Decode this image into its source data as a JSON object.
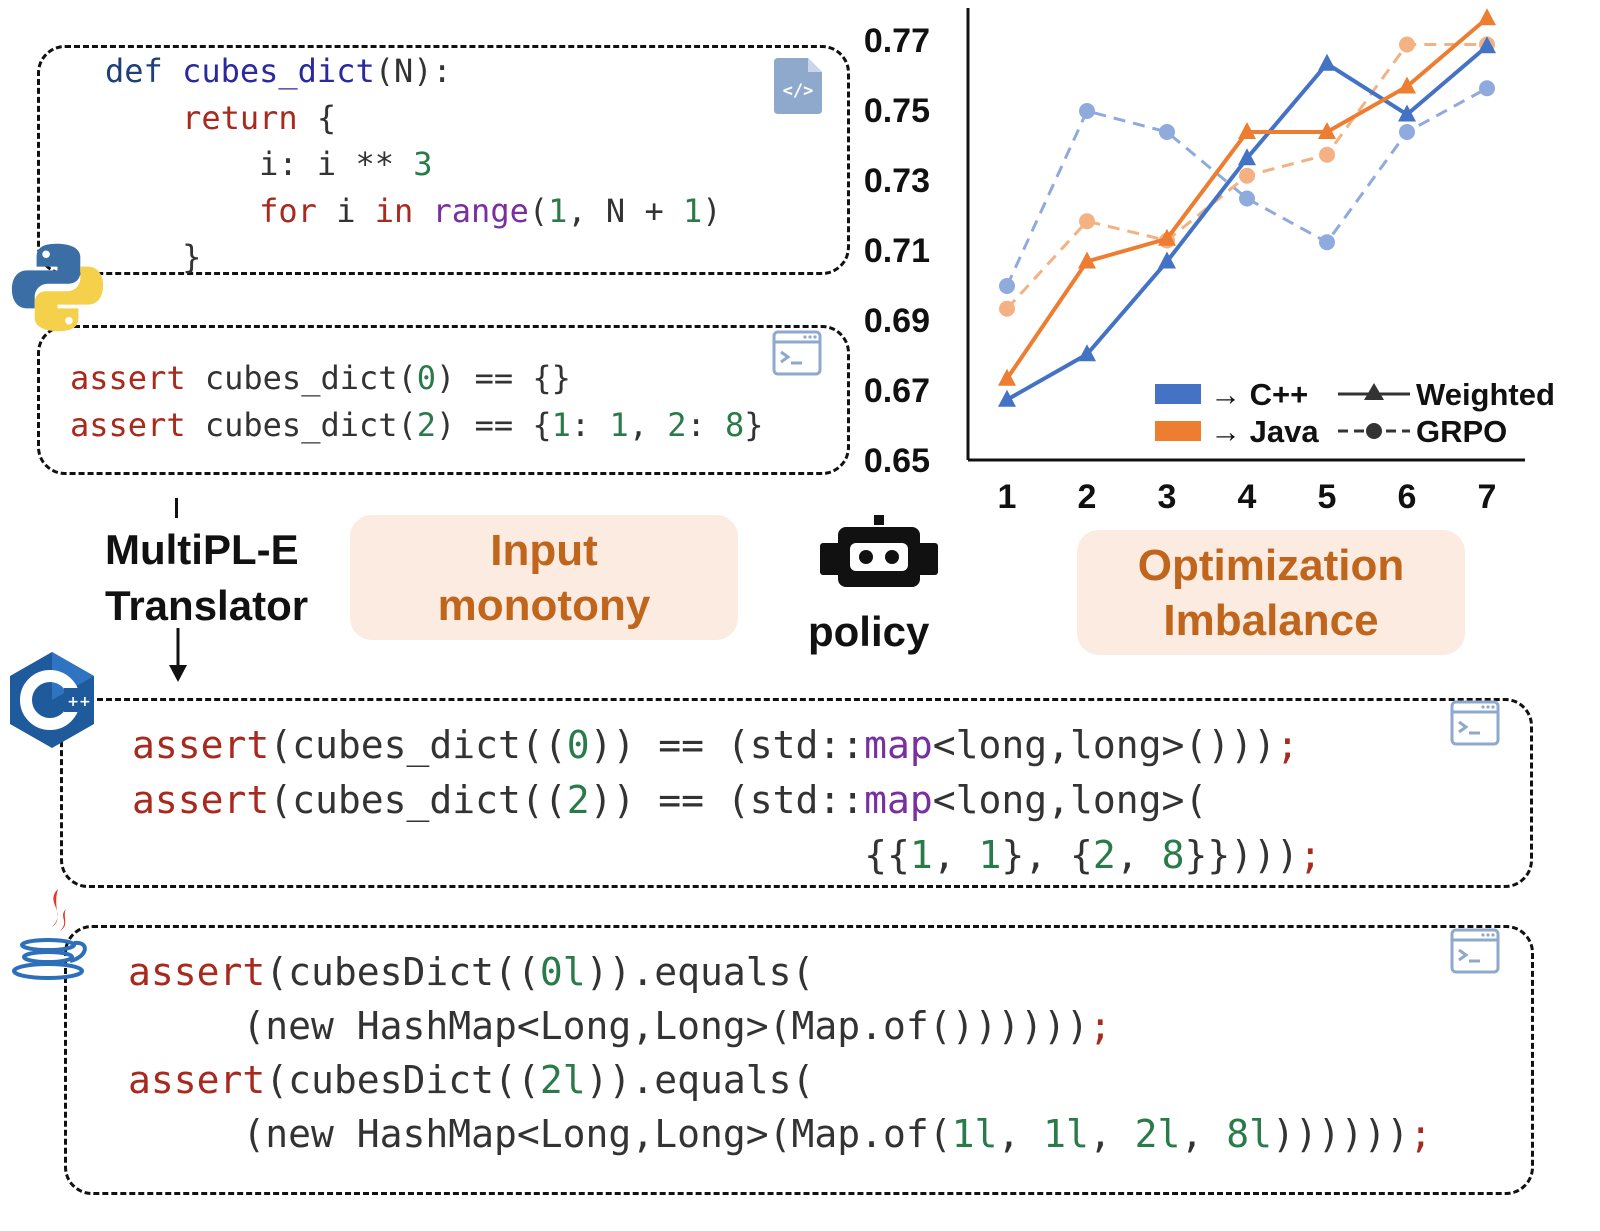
{
  "python": {
    "lines": [
      [
        [
          "def ",
          "kw"
        ],
        [
          "cubes_dict",
          "fn"
        ],
        [
          "(N):",
          ""
        ]
      ],
      [
        [
          "    return ",
          "red"
        ],
        [
          "{",
          ""
        ]
      ],
      [
        [
          "        i: i ** ",
          ""
        ],
        [
          "3",
          "num"
        ]
      ],
      [
        [
          "        for ",
          "red"
        ],
        [
          "i ",
          ""
        ],
        [
          "in ",
          "red"
        ],
        [
          "range",
          "pur"
        ],
        [
          "(",
          ""
        ],
        [
          "1",
          "num"
        ],
        [
          ", N + ",
          ""
        ],
        [
          "1",
          "num"
        ],
        [
          ")",
          ""
        ]
      ],
      [
        [
          "    }",
          ""
        ]
      ]
    ]
  },
  "python_tests": {
    "lines": [
      [
        [
          "assert ",
          "red"
        ],
        [
          "cubes_dict(",
          ""
        ],
        [
          "0",
          "num"
        ],
        [
          ") == {}",
          ""
        ]
      ],
      [
        [
          "assert ",
          "red"
        ],
        [
          "cubes_dict(",
          ""
        ],
        [
          "2",
          "num"
        ],
        [
          ") == {",
          ""
        ],
        [
          "1",
          "num"
        ],
        [
          ": ",
          ""
        ],
        [
          "1",
          "num"
        ],
        [
          ", ",
          ""
        ],
        [
          "2",
          "num"
        ],
        [
          ": ",
          ""
        ],
        [
          "8",
          "num"
        ],
        [
          "}",
          ""
        ]
      ]
    ]
  },
  "translator": {
    "line1": "MultiPL-E",
    "line2": "Translator"
  },
  "input_pill": {
    "line1": "Input",
    "line2": "monotony"
  },
  "policy_label": "policy",
  "optim_pill": {
    "line1": "Optimization",
    "line2": "Imbalance"
  },
  "cpp_tests": {
    "lines": [
      [
        [
          "assert",
          "red"
        ],
        [
          "(cubes_dict((",
          ""
        ],
        [
          "0",
          "num"
        ],
        [
          ")) == (std::",
          ""
        ],
        [
          "map",
          "pur"
        ],
        [
          "<long,long>()))",
          ""
        ],
        [
          ";",
          "red"
        ]
      ],
      [
        [
          "assert",
          "red"
        ],
        [
          "(cubes_dict((",
          ""
        ],
        [
          "2",
          "num"
        ],
        [
          ")) == (std::",
          ""
        ],
        [
          "map",
          "pur"
        ],
        [
          "<long,long>(",
          ""
        ]
      ],
      [
        [
          "                                ",
          ""
        ],
        [
          "{{",
          ""
        ],
        [
          "1",
          "num"
        ],
        [
          ", ",
          ""
        ],
        [
          "1",
          "num"
        ],
        [
          "}, {",
          ""
        ],
        [
          "2",
          "num"
        ],
        [
          ", ",
          ""
        ],
        [
          "8",
          "num"
        ],
        [
          "}})))",
          ""
        ],
        [
          ";",
          "red"
        ]
      ]
    ]
  },
  "java_tests": {
    "lines": [
      [
        [
          "assert",
          "red"
        ],
        [
          "(cubesDict((",
          ""
        ],
        [
          "0l",
          "num"
        ],
        [
          ")).equals(",
          ""
        ]
      ],
      [
        [
          "     (new HashMap<Long,Long>(Map.of())))))",
          ""
        ],
        [
          ";",
          "red"
        ]
      ],
      [
        [
          "assert",
          "red"
        ],
        [
          "(cubesDict((",
          ""
        ],
        [
          "2l",
          "num"
        ],
        [
          ")).equals(",
          ""
        ]
      ],
      [
        [
          "     (new HashMap<Long,Long>(Map.of(",
          ""
        ],
        [
          "1l",
          "num"
        ],
        [
          ", ",
          ""
        ],
        [
          "1l",
          "num"
        ],
        [
          ", ",
          ""
        ],
        [
          "2l",
          "num"
        ],
        [
          ", ",
          ""
        ],
        [
          "8l",
          "num"
        ],
        [
          "))))))",
          ""
        ],
        [
          ";",
          "red"
        ]
      ]
    ]
  },
  "icons": [
    "code-file-icon",
    "terminal-icon",
    "python-logo-icon",
    "cpp-logo-icon",
    "java-logo-icon",
    "robot-icon",
    "arrow-down-icon"
  ],
  "chart_data": {
    "type": "line",
    "x": [
      1,
      2,
      3,
      4,
      5,
      6,
      7
    ],
    "ylim": [
      0.65,
      0.78
    ],
    "y_ticks": [
      "0.65",
      "0.67",
      "0.69",
      "0.71",
      "0.73",
      "0.75",
      "0.77"
    ],
    "x_ticks": [
      "1",
      "2",
      "3",
      "4",
      "5",
      "6",
      "7"
    ],
    "series": [
      {
        "name": "→ C++ Weighted",
        "target": "→ C++",
        "method": "Weighted",
        "color": "#4472c4",
        "style": "solid",
        "marker": "triangle",
        "values": [
          0.6675,
          0.6805,
          0.707,
          0.7365,
          0.7635,
          0.749,
          0.7685
        ]
      },
      {
        "name": "→ Java Weighted",
        "target": "→ Java",
        "method": "Weighted",
        "color": "#ed7d31",
        "style": "solid",
        "marker": "triangle",
        "values": [
          0.6735,
          0.707,
          0.7135,
          0.744,
          0.744,
          0.757,
          0.7765
        ]
      },
      {
        "name": "→ C++ GRPO",
        "target": "→ C++",
        "method": "GRPO",
        "color": "#8faadc",
        "style": "dashed",
        "marker": "circle",
        "values": [
          0.7,
          0.75,
          0.744,
          0.725,
          0.7125,
          0.744,
          0.7565
        ]
      },
      {
        "name": "→ Java GRPO",
        "target": "→ Java",
        "method": "GRPO",
        "color": "#f4b183",
        "style": "dashed",
        "marker": "circle",
        "values": [
          0.6935,
          0.7185,
          0.713,
          0.7315,
          0.7375,
          0.769,
          0.769
        ]
      }
    ],
    "legend": {
      "position": "bottom-right",
      "targets": [
        {
          "label": "→ C++",
          "color": "#4472c4"
        },
        {
          "label": "→ Java",
          "color": "#ed7d31"
        }
      ],
      "methods": [
        {
          "label": "Weighted",
          "style": "solid",
          "marker": "triangle"
        },
        {
          "label": "GRPO",
          "style": "dashed",
          "marker": "circle"
        }
      ]
    }
  }
}
